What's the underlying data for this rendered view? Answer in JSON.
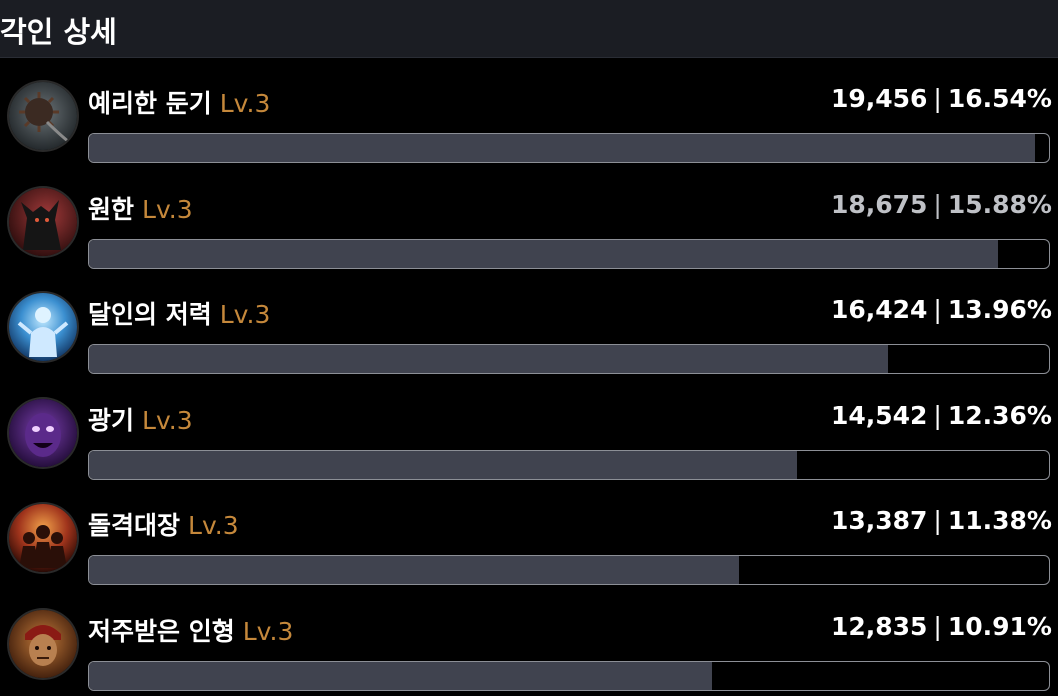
{
  "header": {
    "title": "각인 상세"
  },
  "engravings": [
    {
      "name": "예리한 둔기",
      "level": "Lv.3",
      "damage": "19,456",
      "percent": "16.54%",
      "bar_fraction": 0.985,
      "icon": "spiked-mace-icon",
      "dim": false
    },
    {
      "name": "원한",
      "level": "Lv.3",
      "damage": "18,675",
      "percent": "15.88%",
      "bar_fraction": 0.947,
      "icon": "demon-beast-icon",
      "dim": true
    },
    {
      "name": "달인의 저력",
      "level": "Lv.3",
      "damage": "16,424",
      "percent": "13.96%",
      "bar_fraction": 0.832,
      "icon": "glowing-warrior-icon",
      "dim": false
    },
    {
      "name": "광기",
      "level": "Lv.3",
      "damage": "14,542",
      "percent": "12.36%",
      "bar_fraction": 0.737,
      "icon": "purple-madman-icon",
      "dim": false
    },
    {
      "name": "돌격대장",
      "level": "Lv.3",
      "damage": "13,387",
      "percent": "11.38%",
      "bar_fraction": 0.677,
      "icon": "fire-charge-icon",
      "dim": false
    },
    {
      "name": "저주받은 인형",
      "level": "Lv.3",
      "damage": "12,835",
      "percent": "10.91%",
      "bar_fraction": 0.649,
      "icon": "cursed-doll-icon",
      "dim": false
    }
  ]
}
